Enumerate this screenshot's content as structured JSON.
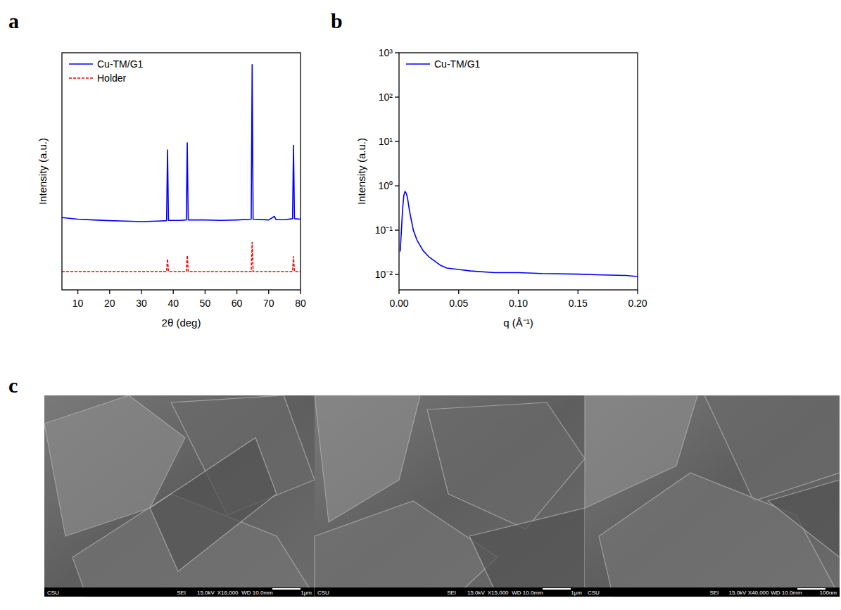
{
  "panel_labels": [
    "a",
    "b",
    "c"
  ],
  "chart_data": [
    {
      "type": "line",
      "x_label": "2θ (deg)",
      "y_label": "Intensity (a.u.)",
      "x": [
        5,
        10,
        15,
        20,
        25,
        30,
        35,
        37.9,
        38.2,
        38.5,
        42,
        44.1,
        44.4,
        44.7,
        50,
        55,
        60,
        64.5,
        64.8,
        65.1,
        70,
        71.8,
        72.3,
        75,
        77.5,
        77.8,
        78.1,
        80
      ],
      "series": [
        {
          "name": "Cu-TM/G1",
          "color": "#0000ff",
          "line_style": "solid",
          "values": [
            30.5,
            29.8,
            29.5,
            29.2,
            29,
            28.8,
            29,
            29.2,
            59,
            29.3,
            29.3,
            29.5,
            62,
            29.5,
            29.5,
            29.3,
            29.5,
            29.8,
            95,
            29.8,
            29.5,
            31,
            29.6,
            29.6,
            30,
            61,
            30,
            29.8
          ]
        },
        {
          "name": "Holder",
          "color": "#ff0000",
          "line_style": "dashed",
          "values": [
            7.7,
            7.7,
            7.7,
            7.7,
            7.7,
            7.7,
            7.7,
            7.7,
            13,
            7.7,
            7.7,
            7.7,
            14.5,
            7.7,
            7.7,
            7.7,
            7.7,
            7.7,
            20,
            7.7,
            7.7,
            7.7,
            7.7,
            7.7,
            7.7,
            14,
            7.7,
            7.7
          ]
        }
      ],
      "xlim": [
        5,
        80
      ],
      "xticks": [
        10,
        20,
        30,
        40,
        50,
        60,
        70,
        80
      ],
      "ylim": [
        0,
        100
      ],
      "tick_labels": "x",
      "legend": "upper left"
    },
    {
      "type": "line",
      "x_label": "q (Å⁻¹)",
      "y_label": "Intensity (a.u.)",
      "log": "y",
      "x": [
        0.001,
        0.002,
        0.003,
        0.004,
        0.005,
        0.006,
        0.007,
        0.009,
        0.012,
        0.015,
        0.02,
        0.025,
        0.03,
        0.035,
        0.04,
        0.05,
        0.06,
        0.08,
        0.1,
        0.12,
        0.15,
        0.17,
        0.19,
        0.2
      ],
      "series": [
        {
          "name": "Cu-TM/G1",
          "color": "#0000ff",
          "line_style": "solid",
          "values": [
            0.033,
            0.1,
            0.3,
            0.6,
            0.75,
            0.68,
            0.55,
            0.25,
            0.1,
            0.06,
            0.035,
            0.025,
            0.02,
            0.016,
            0.014,
            0.013,
            0.012,
            0.011,
            0.011,
            0.0105,
            0.0102,
            0.0098,
            0.0095,
            0.009
          ]
        }
      ],
      "xlim": [
        0,
        0.2
      ],
      "xticks": [
        {
          "value": 0,
          "label": "0.00"
        },
        {
          "value": 0.05,
          "label": "0.05"
        },
        {
          "value": 0.1,
          "label": "0.10"
        },
        {
          "value": 0.15,
          "label": "0.15"
        },
        {
          "value": 0.2,
          "label": "0.20"
        }
      ],
      "ylim": [
        0.0045,
        1000
      ],
      "yticks": [
        {
          "value": 0.01,
          "label": "10⁻²"
        },
        {
          "value": 0.1,
          "label": "10⁻¹"
        },
        {
          "value": 1,
          "label": "10⁰"
        },
        {
          "value": 10,
          "label": "10¹"
        },
        {
          "value": 100,
          "label": "10²"
        },
        {
          "value": 1000,
          "label": "10³"
        }
      ],
      "legend": "upper left"
    }
  ],
  "sem_images": [
    {
      "labels": [
        "CSU",
        "SEI",
        "15.0kV",
        "X16,000",
        "WD 10.0mm",
        "1μm"
      ]
    },
    {
      "labels": [
        "CSU",
        "SEI",
        "15.0kV",
        "X15,000",
        "WD 10.0mm",
        "1μm"
      ]
    },
    {
      "labels": [
        "CSU",
        "SEI",
        "15.0kV",
        "X40,000",
        "WD 10.0mm",
        "100nm"
      ]
    }
  ]
}
